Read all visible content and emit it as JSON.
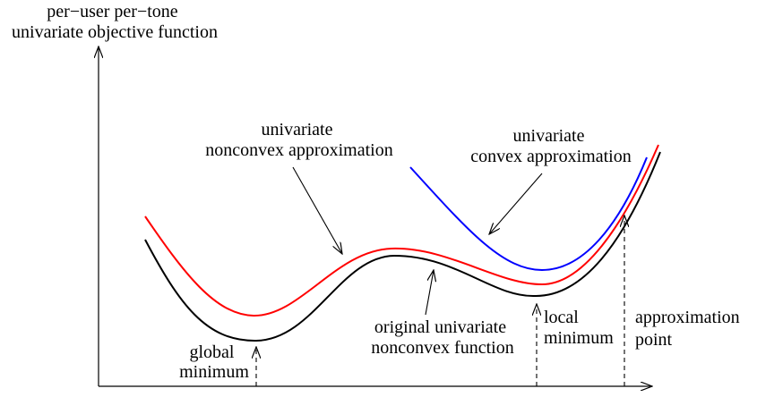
{
  "colors": {
    "original_curve": "#000000",
    "nonconvex_approx_curve": "#ff0000",
    "convex_approx_curve": "#0000ff",
    "axes": "#000000",
    "markers": "#000000",
    "background": "#ffffff"
  },
  "labels": {
    "y_axis_title": [
      "per−user per−tone",
      "univariate objective function"
    ],
    "nonconvex_approx": [
      "univariate",
      "nonconvex approximation"
    ],
    "convex_approx": [
      "univariate",
      "convex approximation"
    ],
    "original_function": [
      "original univariate",
      "nonconvex function"
    ],
    "global_minimum": [
      "global",
      "minimum"
    ],
    "local_minimum": [
      "local",
      "minimum"
    ],
    "approximation_point": [
      "approximation",
      "point"
    ]
  }
}
